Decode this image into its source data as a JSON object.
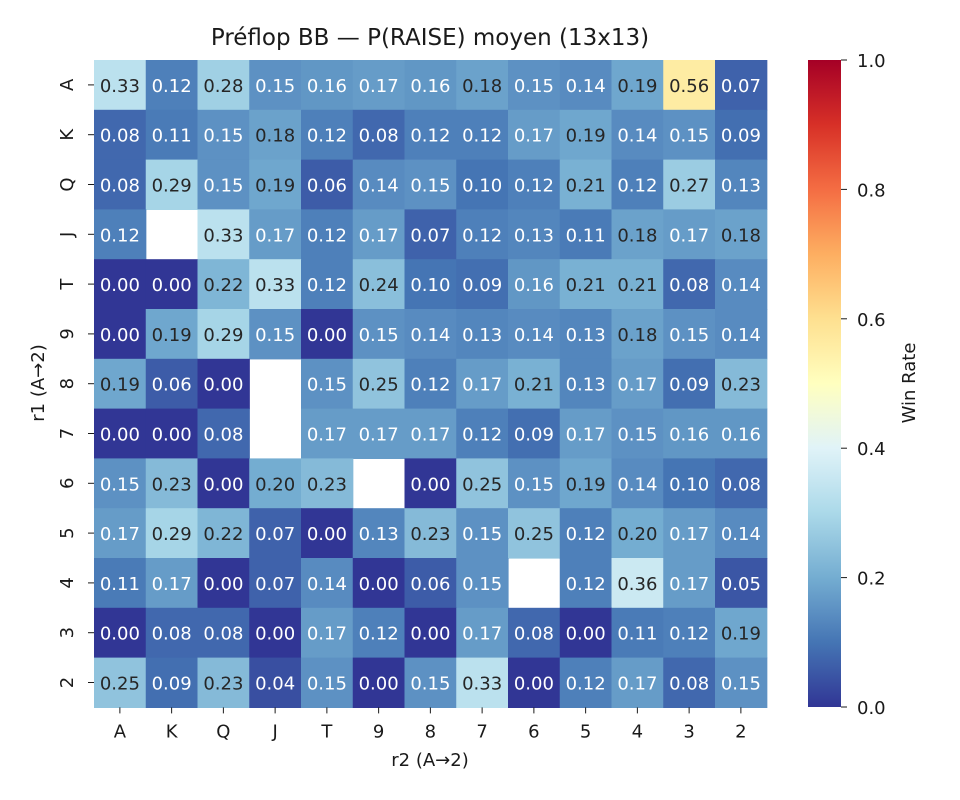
{
  "chart_data": {
    "type": "heatmap",
    "title": "Préflop BB — P(RAISE) moyen (13x13)",
    "xlabel": "r2 (A→2)",
    "ylabel": "r1 (A→2)",
    "x_categories": [
      "A",
      "K",
      "Q",
      "J",
      "T",
      "9",
      "8",
      "7",
      "6",
      "5",
      "4",
      "3",
      "2"
    ],
    "y_categories": [
      "A",
      "K",
      "Q",
      "J",
      "T",
      "9",
      "8",
      "7",
      "6",
      "5",
      "4",
      "3",
      "2"
    ],
    "values": [
      [
        0.33,
        0.12,
        0.28,
        0.15,
        0.16,
        0.17,
        0.16,
        0.18,
        0.15,
        0.14,
        0.19,
        0.56,
        0.07
      ],
      [
        0.08,
        0.11,
        0.15,
        0.18,
        0.12,
        0.08,
        0.12,
        0.12,
        0.17,
        0.19,
        0.14,
        0.15,
        0.09
      ],
      [
        0.08,
        0.29,
        0.15,
        0.19,
        0.06,
        0.14,
        0.15,
        0.1,
        0.12,
        0.21,
        0.12,
        0.27,
        0.13
      ],
      [
        0.12,
        null,
        0.33,
        0.17,
        0.12,
        0.17,
        0.07,
        0.12,
        0.13,
        0.11,
        0.18,
        0.17,
        0.18
      ],
      [
        0.0,
        0.0,
        0.22,
        0.33,
        0.12,
        0.24,
        0.1,
        0.09,
        0.16,
        0.21,
        0.21,
        0.08,
        0.14
      ],
      [
        0.0,
        0.19,
        0.29,
        0.15,
        0.0,
        0.15,
        0.14,
        0.13,
        0.14,
        0.13,
        0.18,
        0.15,
        0.14
      ],
      [
        0.19,
        0.06,
        0.0,
        null,
        0.15,
        0.25,
        0.12,
        0.17,
        0.21,
        0.13,
        0.17,
        0.09,
        0.23
      ],
      [
        0.0,
        0.0,
        0.08,
        null,
        0.17,
        0.17,
        0.17,
        0.12,
        0.09,
        0.17,
        0.15,
        0.16,
        0.16
      ],
      [
        0.15,
        0.23,
        0.0,
        0.2,
        0.23,
        null,
        0.0,
        0.25,
        0.15,
        0.19,
        0.14,
        0.1,
        0.08
      ],
      [
        0.17,
        0.29,
        0.22,
        0.07,
        0.0,
        0.13,
        0.23,
        0.15,
        0.25,
        0.12,
        0.2,
        0.17,
        0.14
      ],
      [
        0.11,
        0.17,
        0.0,
        0.07,
        0.14,
        0.0,
        0.06,
        0.15,
        null,
        0.12,
        0.36,
        0.17,
        0.05
      ],
      [
        0.0,
        0.08,
        0.08,
        0.0,
        0.17,
        0.12,
        0.0,
        0.17,
        0.08,
        0.0,
        0.11,
        0.12,
        0.19
      ],
      [
        0.25,
        0.09,
        0.23,
        0.04,
        0.15,
        0.0,
        0.15,
        0.33,
        0.0,
        0.12,
        0.17,
        0.08,
        0.15
      ]
    ],
    "value_range": [
      0,
      1
    ],
    "colormap": "RdYlBu_r",
    "colorbar": {
      "label": "Win Rate",
      "ticks": [
        "0.0",
        "0.2",
        "0.4",
        "0.6",
        "0.8",
        "1.0"
      ]
    },
    "grid": false
  }
}
